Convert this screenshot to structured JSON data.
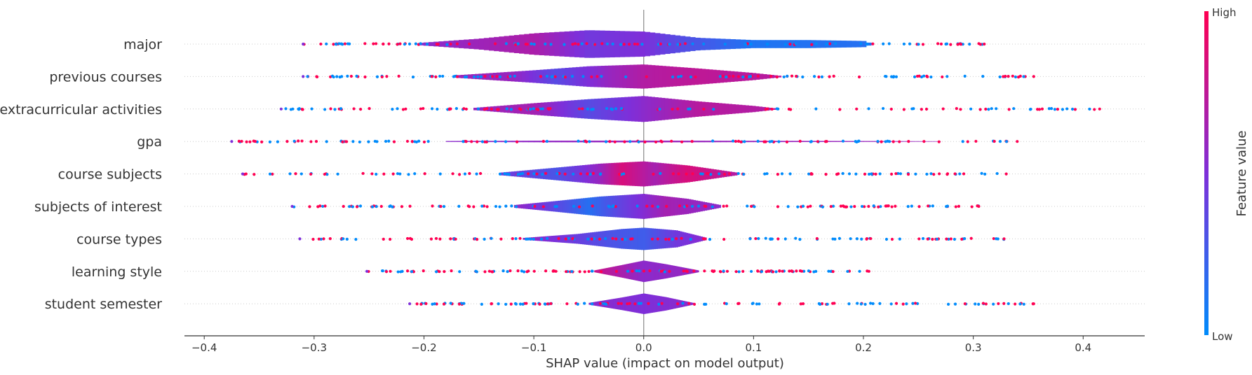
{
  "chart_data": {
    "type": "violin",
    "xlabel": "SHAP value (impact on model output)",
    "xlim": [
      -0.418,
      0.456
    ],
    "xticks": [
      -0.4,
      -0.3,
      -0.2,
      -0.1,
      0.0,
      0.1,
      0.2,
      0.3,
      0.4
    ],
    "xtick_labels": [
      "−0.4",
      "−0.3",
      "−0.2",
      "−0.1",
      "0.0",
      "0.1",
      "0.2",
      "0.3",
      "0.4"
    ],
    "zero_line": 0.0,
    "grid": false,
    "colorbar": {
      "label": "Feature value",
      "high_label": "High",
      "low_label": "Low",
      "low_color": "#008bfb",
      "mid_color": "#7e2fd9",
      "high_color": "#ff0052"
    },
    "features": [
      {
        "name": "major",
        "body": [
          -0.205,
          0.207
        ],
        "dot_range": [
          -0.31,
          0.31
        ],
        "widths": [
          [
            -0.205,
            0.5
          ],
          [
            -0.15,
            2.4
          ],
          [
            -0.1,
            4.8
          ],
          [
            -0.05,
            6.2
          ],
          [
            0.0,
            5.6
          ],
          [
            0.05,
            2.8
          ],
          [
            0.1,
            1.8
          ],
          [
            0.15,
            1.8
          ],
          [
            0.2,
            1.4
          ],
          [
            0.207,
            0.3
          ]
        ],
        "colors": [
          [
            -0.2,
            0.55
          ],
          [
            -0.15,
            0.62
          ],
          [
            -0.1,
            0.68
          ],
          [
            -0.05,
            0.45
          ],
          [
            0.0,
            0.5
          ],
          [
            0.03,
            0.35
          ],
          [
            0.1,
            0.12
          ],
          [
            0.2,
            0.15
          ]
        ]
      },
      {
        "name": "previous courses",
        "body": [
          -0.17,
          0.125
        ],
        "dot_range": [
          -0.31,
          0.355
        ],
        "widths": [
          [
            -0.17,
            0.6
          ],
          [
            -0.1,
            2.8
          ],
          [
            -0.05,
            4.6
          ],
          [
            0.0,
            5.4
          ],
          [
            0.05,
            3.6
          ],
          [
            0.1,
            1.6
          ],
          [
            0.125,
            0.3
          ]
        ],
        "colors": [
          [
            -0.17,
            0.62
          ],
          [
            -0.12,
            0.6
          ],
          [
            -0.08,
            0.35
          ],
          [
            -0.03,
            0.6
          ],
          [
            0.0,
            0.7
          ],
          [
            0.05,
            0.75
          ],
          [
            0.1,
            0.72
          ]
        ]
      },
      {
        "name": "extracurricular activities",
        "body": [
          -0.155,
          0.12
        ],
        "dot_range": [
          -0.33,
          0.415
        ],
        "widths": [
          [
            -0.155,
            0.5
          ],
          [
            -0.1,
            2.6
          ],
          [
            -0.05,
            4.4
          ],
          [
            0.0,
            5.8
          ],
          [
            0.05,
            3.4
          ],
          [
            0.1,
            1.4
          ],
          [
            0.12,
            0.3
          ]
        ],
        "colors": [
          [
            -0.15,
            0.6
          ],
          [
            -0.1,
            0.65
          ],
          [
            -0.05,
            0.35
          ],
          [
            0.0,
            0.55
          ],
          [
            0.05,
            0.72
          ],
          [
            0.1,
            0.7
          ]
        ]
      },
      {
        "name": "gpa",
        "body": [
          -0.18,
          0.27
        ],
        "dot_range": [
          -0.375,
          0.34
        ],
        "widths": [
          [
            -0.18,
            0.2
          ],
          [
            -0.1,
            0.35
          ],
          [
            0.0,
            0.4
          ],
          [
            0.1,
            0.3
          ],
          [
            0.2,
            0.2
          ],
          [
            0.27,
            0.1
          ]
        ],
        "colors": [
          [
            -0.18,
            0.55
          ],
          [
            0.0,
            0.6
          ],
          [
            0.27,
            0.6
          ]
        ]
      },
      {
        "name": "course subjects",
        "body": [
          -0.13,
          0.085
        ],
        "dot_range": [
          -0.365,
          0.33
        ],
        "widths": [
          [
            -0.13,
            0.6
          ],
          [
            -0.08,
            2.8
          ],
          [
            -0.04,
            4.6
          ],
          [
            0.0,
            5.6
          ],
          [
            0.04,
            3.8
          ],
          [
            0.085,
            0.6
          ]
        ],
        "colors": [
          [
            -0.13,
            0.45
          ],
          [
            -0.08,
            0.3
          ],
          [
            -0.04,
            0.6
          ],
          [
            -0.02,
            0.85
          ],
          [
            0.01,
            0.65
          ],
          [
            0.04,
            0.85
          ],
          [
            0.085,
            0.7
          ]
        ]
      },
      {
        "name": "subjects of interest",
        "body": [
          -0.118,
          0.07
        ],
        "dot_range": [
          -0.32,
          0.305
        ],
        "widths": [
          [
            -0.118,
            0.6
          ],
          [
            -0.08,
            2.4
          ],
          [
            -0.04,
            4.4
          ],
          [
            0.0,
            5.6
          ],
          [
            0.04,
            3.4
          ],
          [
            0.07,
            0.6
          ]
        ],
        "colors": [
          [
            -0.118,
            0.6
          ],
          [
            -0.07,
            0.3
          ],
          [
            -0.05,
            0.15
          ],
          [
            -0.02,
            0.4
          ],
          [
            0.02,
            0.65
          ],
          [
            0.07,
            0.55
          ]
        ]
      },
      {
        "name": "course types",
        "body": [
          -0.11,
          0.057
        ],
        "dot_range": [
          -0.313,
          0.328
        ],
        "widths": [
          [
            -0.11,
            0.4
          ],
          [
            -0.06,
            2.2
          ],
          [
            -0.02,
            4.4
          ],
          [
            0.0,
            5.0
          ],
          [
            0.03,
            3.8
          ],
          [
            0.057,
            0.5
          ]
        ],
        "colors": [
          [
            -0.11,
            0.6
          ],
          [
            -0.07,
            0.45
          ],
          [
            -0.03,
            0.3
          ],
          [
            0.0,
            0.25
          ],
          [
            0.03,
            0.45
          ],
          [
            0.057,
            0.55
          ]
        ]
      },
      {
        "name": "learning style",
        "body": [
          -0.045,
          0.05
        ],
        "dot_range": [
          -0.252,
          0.205
        ],
        "widths": [
          [
            -0.045,
            0.4
          ],
          [
            -0.02,
            2.8
          ],
          [
            0.0,
            4.8
          ],
          [
            0.02,
            3.2
          ],
          [
            0.05,
            0.4
          ]
        ],
        "colors": [
          [
            -0.045,
            0.8
          ],
          [
            0.0,
            0.55
          ],
          [
            0.05,
            0.6
          ]
        ]
      },
      {
        "name": "student semester",
        "body": [
          -0.05,
          0.045
        ],
        "dot_range": [
          -0.213,
          0.355
        ],
        "widths": [
          [
            -0.05,
            0.4
          ],
          [
            -0.02,
            2.8
          ],
          [
            0.0,
            4.6
          ],
          [
            0.02,
            3.0
          ],
          [
            0.045,
            0.4
          ]
        ],
        "colors": [
          [
            -0.05,
            0.55
          ],
          [
            0.0,
            0.5
          ],
          [
            0.045,
            0.55
          ]
        ]
      }
    ]
  }
}
